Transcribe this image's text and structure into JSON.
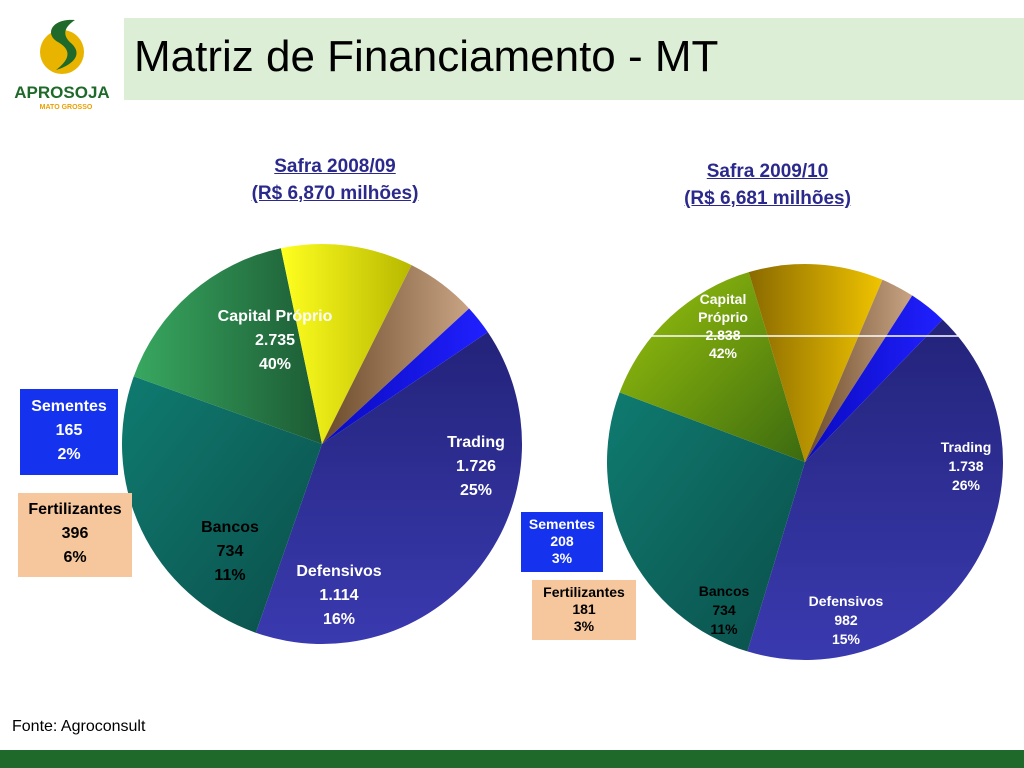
{
  "page": {
    "title": "Matriz de Financiamento - MT",
    "source": "Fonte: Agroconsult"
  },
  "logo": {
    "name": "APROSOJA",
    "subtitle": "MATO GROSSO"
  },
  "colors": {
    "title_bar": "#dcefd6",
    "footer_bar": "#1f6a2a",
    "title_text": "#2b2a8c",
    "capital_proprio": "#2e2e88",
    "trading": "#0d6a62",
    "defensivos_a": "#2e9a50",
    "defensivos_b": "#8ab70a",
    "bancos_a": "#eef000",
    "bancos_b": "#e8ba00",
    "fertilizantes": "#b08a66",
    "sementes": "#1414e0"
  },
  "chart_data": [
    {
      "type": "pie",
      "title": "Safra 2008/09",
      "subtitle": "(R$ 6,870 milhões)",
      "slices": [
        {
          "name": "Capital Próprio",
          "value_label": "2.735",
          "value": 2735,
          "percent": 40,
          "percent_label": "40%"
        },
        {
          "name": "Trading",
          "value_label": "1.726",
          "value": 1726,
          "percent": 25,
          "percent_label": "25%"
        },
        {
          "name": "Defensivos",
          "value_label": "1.114",
          "value": 1114,
          "percent": 16,
          "percent_label": "16%"
        },
        {
          "name": "Bancos",
          "value_label": "734",
          "value": 734,
          "percent": 11,
          "percent_label": "11%"
        },
        {
          "name": "Fertilizantes",
          "value_label": "396",
          "value": 396,
          "percent": 6,
          "percent_label": "6%"
        },
        {
          "name": "Sementes",
          "value_label": "165",
          "value": 165,
          "percent": 2,
          "percent_label": "2%"
        }
      ]
    },
    {
      "type": "pie",
      "title": "Safra 2009/10",
      "subtitle": "(R$ 6,681 milhões)",
      "slices": [
        {
          "name": "Capital Próprio",
          "value_label": "2.838",
          "value": 2838,
          "percent": 42,
          "percent_label": "42%"
        },
        {
          "name": "Trading",
          "value_label": "1.738",
          "value": 1738,
          "percent": 26,
          "percent_label": "26%"
        },
        {
          "name": "Defensivos",
          "value_label": "982",
          "value": 982,
          "percent": 15,
          "percent_label": "15%"
        },
        {
          "name": "Bancos",
          "value_label": "734",
          "value": 734,
          "percent": 11,
          "percent_label": "11%"
        },
        {
          "name": "Fertilizantes",
          "value_label": "181",
          "value": 181,
          "percent": 3,
          "percent_label": "3%"
        },
        {
          "name": "Sementes",
          "value_label": "208",
          "value": 208,
          "percent": 3,
          "percent_label": "3%"
        }
      ]
    }
  ]
}
